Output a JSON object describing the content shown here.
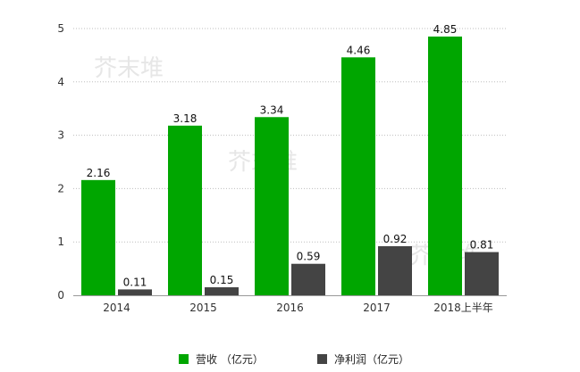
{
  "chart_data": {
    "type": "bar",
    "categories": [
      "2014",
      "2015",
      "2016",
      "2017",
      "2018上半年"
    ],
    "series": [
      {
        "name": "营收 （亿元）",
        "values": [
          2.16,
          3.18,
          3.34,
          4.46,
          4.85
        ],
        "color": "#00a600"
      },
      {
        "name": "净利润（亿元）",
        "values": [
          0.11,
          0.15,
          0.59,
          0.92,
          0.81
        ],
        "color": "#444444"
      }
    ],
    "value_labels": [
      [
        "2.16",
        "3.18",
        "3.34",
        "4.46",
        "4.85"
      ],
      [
        "0.11",
        "0.15",
        "0.59",
        "0.92",
        "0.81"
      ]
    ],
    "title": "",
    "xlabel": "",
    "ylabel": "",
    "ylim": [
      0,
      5
    ],
    "yticks": [
      "0",
      "1",
      "2",
      "3",
      "4",
      "5"
    ],
    "grid": true,
    "legend_position": "bottom",
    "watermark": "芥末堆"
  }
}
